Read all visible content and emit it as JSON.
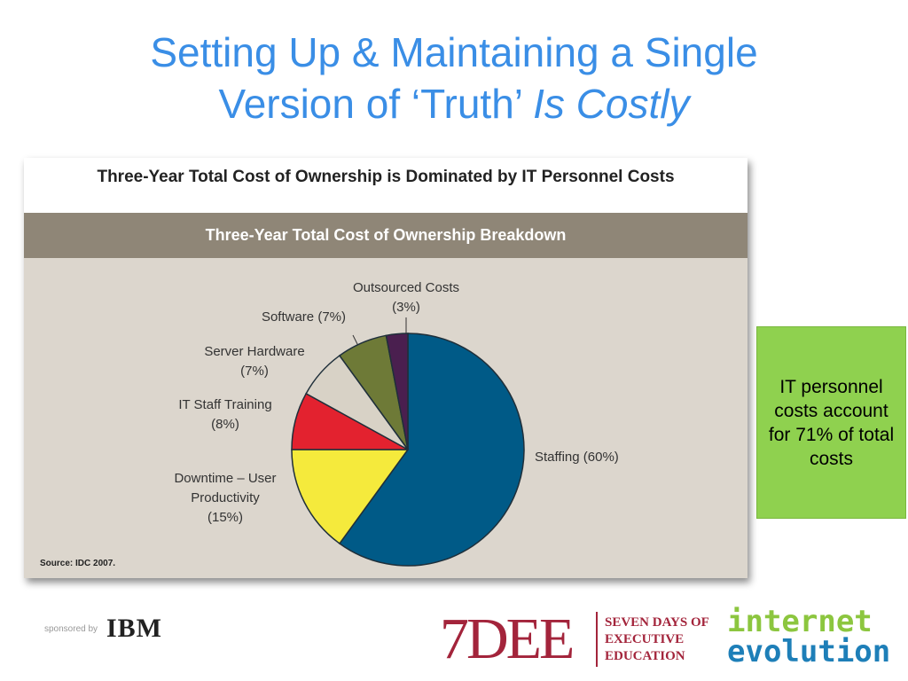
{
  "slide": {
    "title_lines": [
      "Setting Up & Maintaining a Single",
      "Version of ‘Truth’"
    ],
    "title_emphasis": "Is Costly",
    "callout": "IT personnel costs account for 71% of total costs",
    "sponsor_text": "sponsored by",
    "sponsor_logo": "IBM",
    "brand": "7DEE",
    "brand_lines": [
      "SEVEN DAYS OF",
      "EXECUTIVE",
      "EDUCATION"
    ],
    "partner_lines": [
      "internet",
      "evolution"
    ]
  },
  "chart_data": {
    "type": "pie",
    "title": "Three-Year Total Cost of Ownership is Dominated by IT Personnel Costs",
    "subtitle": "Three-Year Total Cost of Ownership Breakdown",
    "categories": [
      "Staffing",
      "Downtime – User Productivity",
      "IT Staff Training",
      "Server Hardware",
      "Software",
      "Outsourced Costs"
    ],
    "values": [
      60,
      15,
      8,
      7,
      7,
      3
    ],
    "value_labels": [
      "(60%)",
      "(15%)",
      "(8%)",
      "(7%)",
      "(7%)",
      "(3%)"
    ],
    "colors": [
      "#005a87",
      "#f5ea3c",
      "#e3222f",
      "#d8d2c6",
      "#6e7a37",
      "#4a1f4f"
    ],
    "source": "Source: IDC 2007."
  }
}
